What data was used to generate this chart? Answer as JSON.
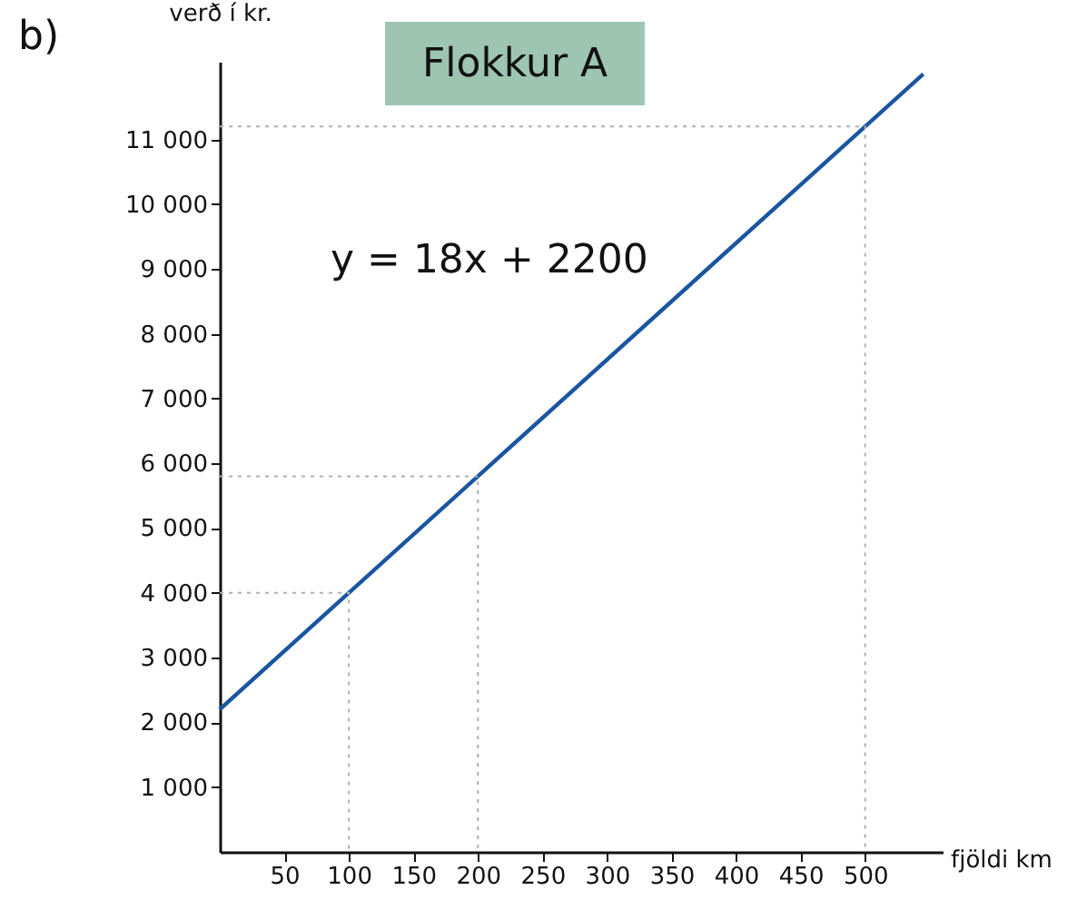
{
  "chart_data": {
    "type": "line",
    "title": "Flokkur A",
    "xlabel": "fjöldi km",
    "ylabel": "verð í kr.",
    "annotations": [
      "b)",
      "y = 18x + 2200"
    ],
    "series": [
      {
        "color": "#1a56a0",
        "line_style": "solid",
        "x": [
          0,
          545
        ],
        "values": [
          2200,
          12010
        ]
      },
      {
        "color": "#b0b0b0",
        "line_style": "dotted",
        "x": [
          0,
          100,
          100
        ],
        "values": [
          4000,
          4000,
          0
        ]
      },
      {
        "color": "#b0b0b0",
        "line_style": "dotted",
        "x": [
          0,
          200,
          200
        ],
        "values": [
          5800,
          5800,
          0
        ]
      },
      {
        "color": "#b0b0b0",
        "line_style": "dotted",
        "x": [
          0,
          500,
          500
        ],
        "values": [
          11200,
          11200,
          0
        ]
      }
    ],
    "xlim": [
      0,
      560
    ],
    "ylim": [
      0,
      12200
    ],
    "xticks": [
      50,
      100,
      150,
      200,
      250,
      300,
      350,
      400,
      450,
      500
    ],
    "yticks": [
      {
        "value": 1000,
        "label": "1 000"
      },
      {
        "value": 2000,
        "label": "2 000"
      },
      {
        "value": 3000,
        "label": "3 000"
      },
      {
        "value": 4000,
        "label": "4 000"
      },
      {
        "value": 5000,
        "label": "5 000"
      },
      {
        "value": 6000,
        "label": "6 000"
      },
      {
        "value": 7000,
        "label": "7 000"
      },
      {
        "value": 8000,
        "label": "8 000"
      },
      {
        "value": 9000,
        "label": "9 000"
      },
      {
        "value": 10000,
        "label": "10 000"
      },
      {
        "value": 11000,
        "label": "11 000"
      }
    ],
    "grid": false
  }
}
